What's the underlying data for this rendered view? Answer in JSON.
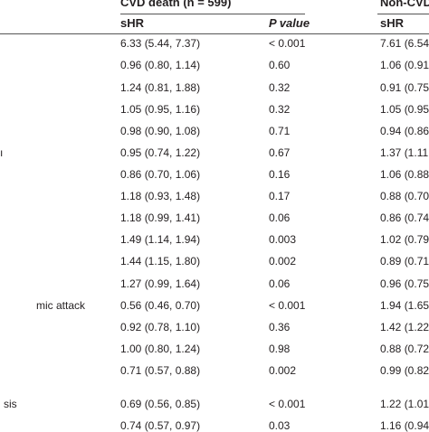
{
  "header": {
    "group1_title": "CVD death (n = 599)",
    "group2_title": "Non-CVD",
    "col_shr1": "sHR",
    "col_p": "P value",
    "col_shr2": "sHR"
  },
  "row_label_fragments": [
    {
      "row": 5,
      "text": "ı"
    },
    {
      "row": 12,
      "text": "mic attack"
    },
    {
      "row": 16,
      "text": "sis"
    }
  ],
  "rows": [
    {
      "shr1": "6.33 (5.44, 7.37)",
      "p": "< 0.001",
      "shr2": "7.61 (6.54,"
    },
    {
      "shr1": "0.96 (0.80, 1.14)",
      "p": "0.60",
      "shr2": "1.06 (0.91,"
    },
    {
      "shr1": "1.24 (0.81, 1.88)",
      "p": "0.32",
      "shr2": "0.91 (0.75,"
    },
    {
      "shr1": "1.05 (0.95, 1.16)",
      "p": "0.32",
      "shr2": "1.05 (0.95,"
    },
    {
      "shr1": "0.98 (0.90, 1.08)",
      "p": "0.71",
      "shr2": "0.94 (0.86,"
    },
    {
      "shr1": "0.95 (0.74, 1.22)",
      "p": "0.67",
      "shr2": "1.37 (1.11,"
    },
    {
      "shr1": "0.86 (0.70, 1.06)",
      "p": "0.16",
      "shr2": "1.06 (0.88,"
    },
    {
      "shr1": "1.18 (0.93, 1.48)",
      "p": "0.17",
      "shr2": "0.88 (0.70,"
    },
    {
      "shr1": "1.18 (0.99, 1.41)",
      "p": "0.06",
      "shr2": "0.86 (0.74,"
    },
    {
      "shr1": "1.49 (1.14, 1.94)",
      "p": "0.003",
      "shr2": "1.02 (0.79,"
    },
    {
      "shr1": "1.44 (1.15, 1.80)",
      "p": "0.002",
      "shr2": "0.89 (0.71,"
    },
    {
      "shr1": "1.27 (0.99, 1.64)",
      "p": "0.06",
      "shr2": "0.96 (0.75,"
    },
    {
      "shr1": "0.56 (0.46, 0.70)",
      "p": "< 0.001",
      "shr2": "1.94 (1.65,"
    },
    {
      "shr1": "0.92 (0.78, 1.10)",
      "p": "0.36",
      "shr2": "1.42 (1.22,"
    },
    {
      "shr1": "1.00 (0.80, 1.24)",
      "p": "0.98",
      "shr2": "0.88 (0.72,"
    },
    {
      "shr1": "0.71 (0.57, 0.88)",
      "p": "0.002",
      "shr2": "0.99 (0.82,"
    },
    {
      "shr1": "0.69 (0.56, 0.85)",
      "p": "< 0.001",
      "shr2": "1.22 (1.01,"
    },
    {
      "shr1": "0.74 (0.57, 0.97)",
      "p": "0.03",
      "shr2": "1.16 (0.94,"
    }
  ]
}
